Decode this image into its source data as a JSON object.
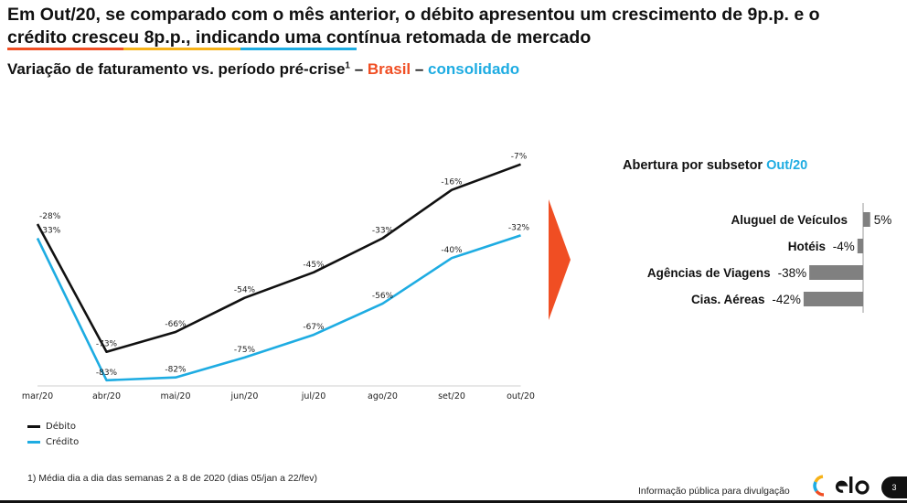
{
  "headline": {
    "line1": "Em Out/20, se comparado com o mês anterior, o débito apresentou um crescimento de 9p.p. e o",
    "line2": "crédito cresceu 8p.p., indicando uma contínua retomada de mercado"
  },
  "brand_colors": {
    "red": "#f04e23",
    "yellow": "#f6b219",
    "blue": "#1eace2",
    "black": "#111111",
    "bar_gray": "#808080"
  },
  "subtitle": {
    "main": "Variação de faturamento vs. período pré-crise",
    "sup": "1",
    "dash1": " – ",
    "brasil": "Brasil",
    "dash2": " – ",
    "consolidado": "consolidado"
  },
  "chart_data": [
    {
      "type": "line",
      "categories": [
        "mar/20",
        "abr/20",
        "mai/20",
        "jun/20",
        "jul/20",
        "ago/20",
        "set/20",
        "out/20"
      ],
      "series": [
        {
          "name": "Débito",
          "color": "#111111",
          "values": [
            -28,
            -73,
            -66,
            -54,
            -45,
            -33,
            -16,
            -7
          ],
          "labels": [
            "-28%",
            "-73%",
            "-66%",
            "-54%",
            "-45%",
            "-33%",
            "-16%",
            "-7%"
          ]
        },
        {
          "name": "Crédito",
          "color": "#1eace2",
          "values": [
            -33,
            -83,
            -82,
            -75,
            -67,
            -56,
            -40,
            -32
          ],
          "labels": [
            "-33%",
            "-83%",
            "-82%",
            "-75%",
            "-67%",
            "-56%",
            "-40%",
            "-32%"
          ]
        }
      ],
      "ylim": [
        -85,
        0
      ],
      "grid": false,
      "legend_position": "bottom-left"
    },
    {
      "type": "bar",
      "orientation": "horizontal",
      "title": "Abertura por subsetor",
      "title_accent": "Out/20",
      "categories": [
        "Aluguel de Veículos",
        "Hotéis",
        "Agências de Viagens",
        "Cias. Aéreas"
      ],
      "values": [
        5,
        -4,
        -38,
        -42
      ],
      "labels": [
        "5%",
        "-4%",
        "-38%",
        "-42%"
      ],
      "color": "#808080"
    }
  ],
  "footnote": "1)  Média dia a dia das semanas 2 a 8 de 2020 (dias 05/jan a 22/fev)",
  "disclaimer": "Informação pública para divulgação",
  "page_number": "3",
  "logo_icon": "elo-logo"
}
